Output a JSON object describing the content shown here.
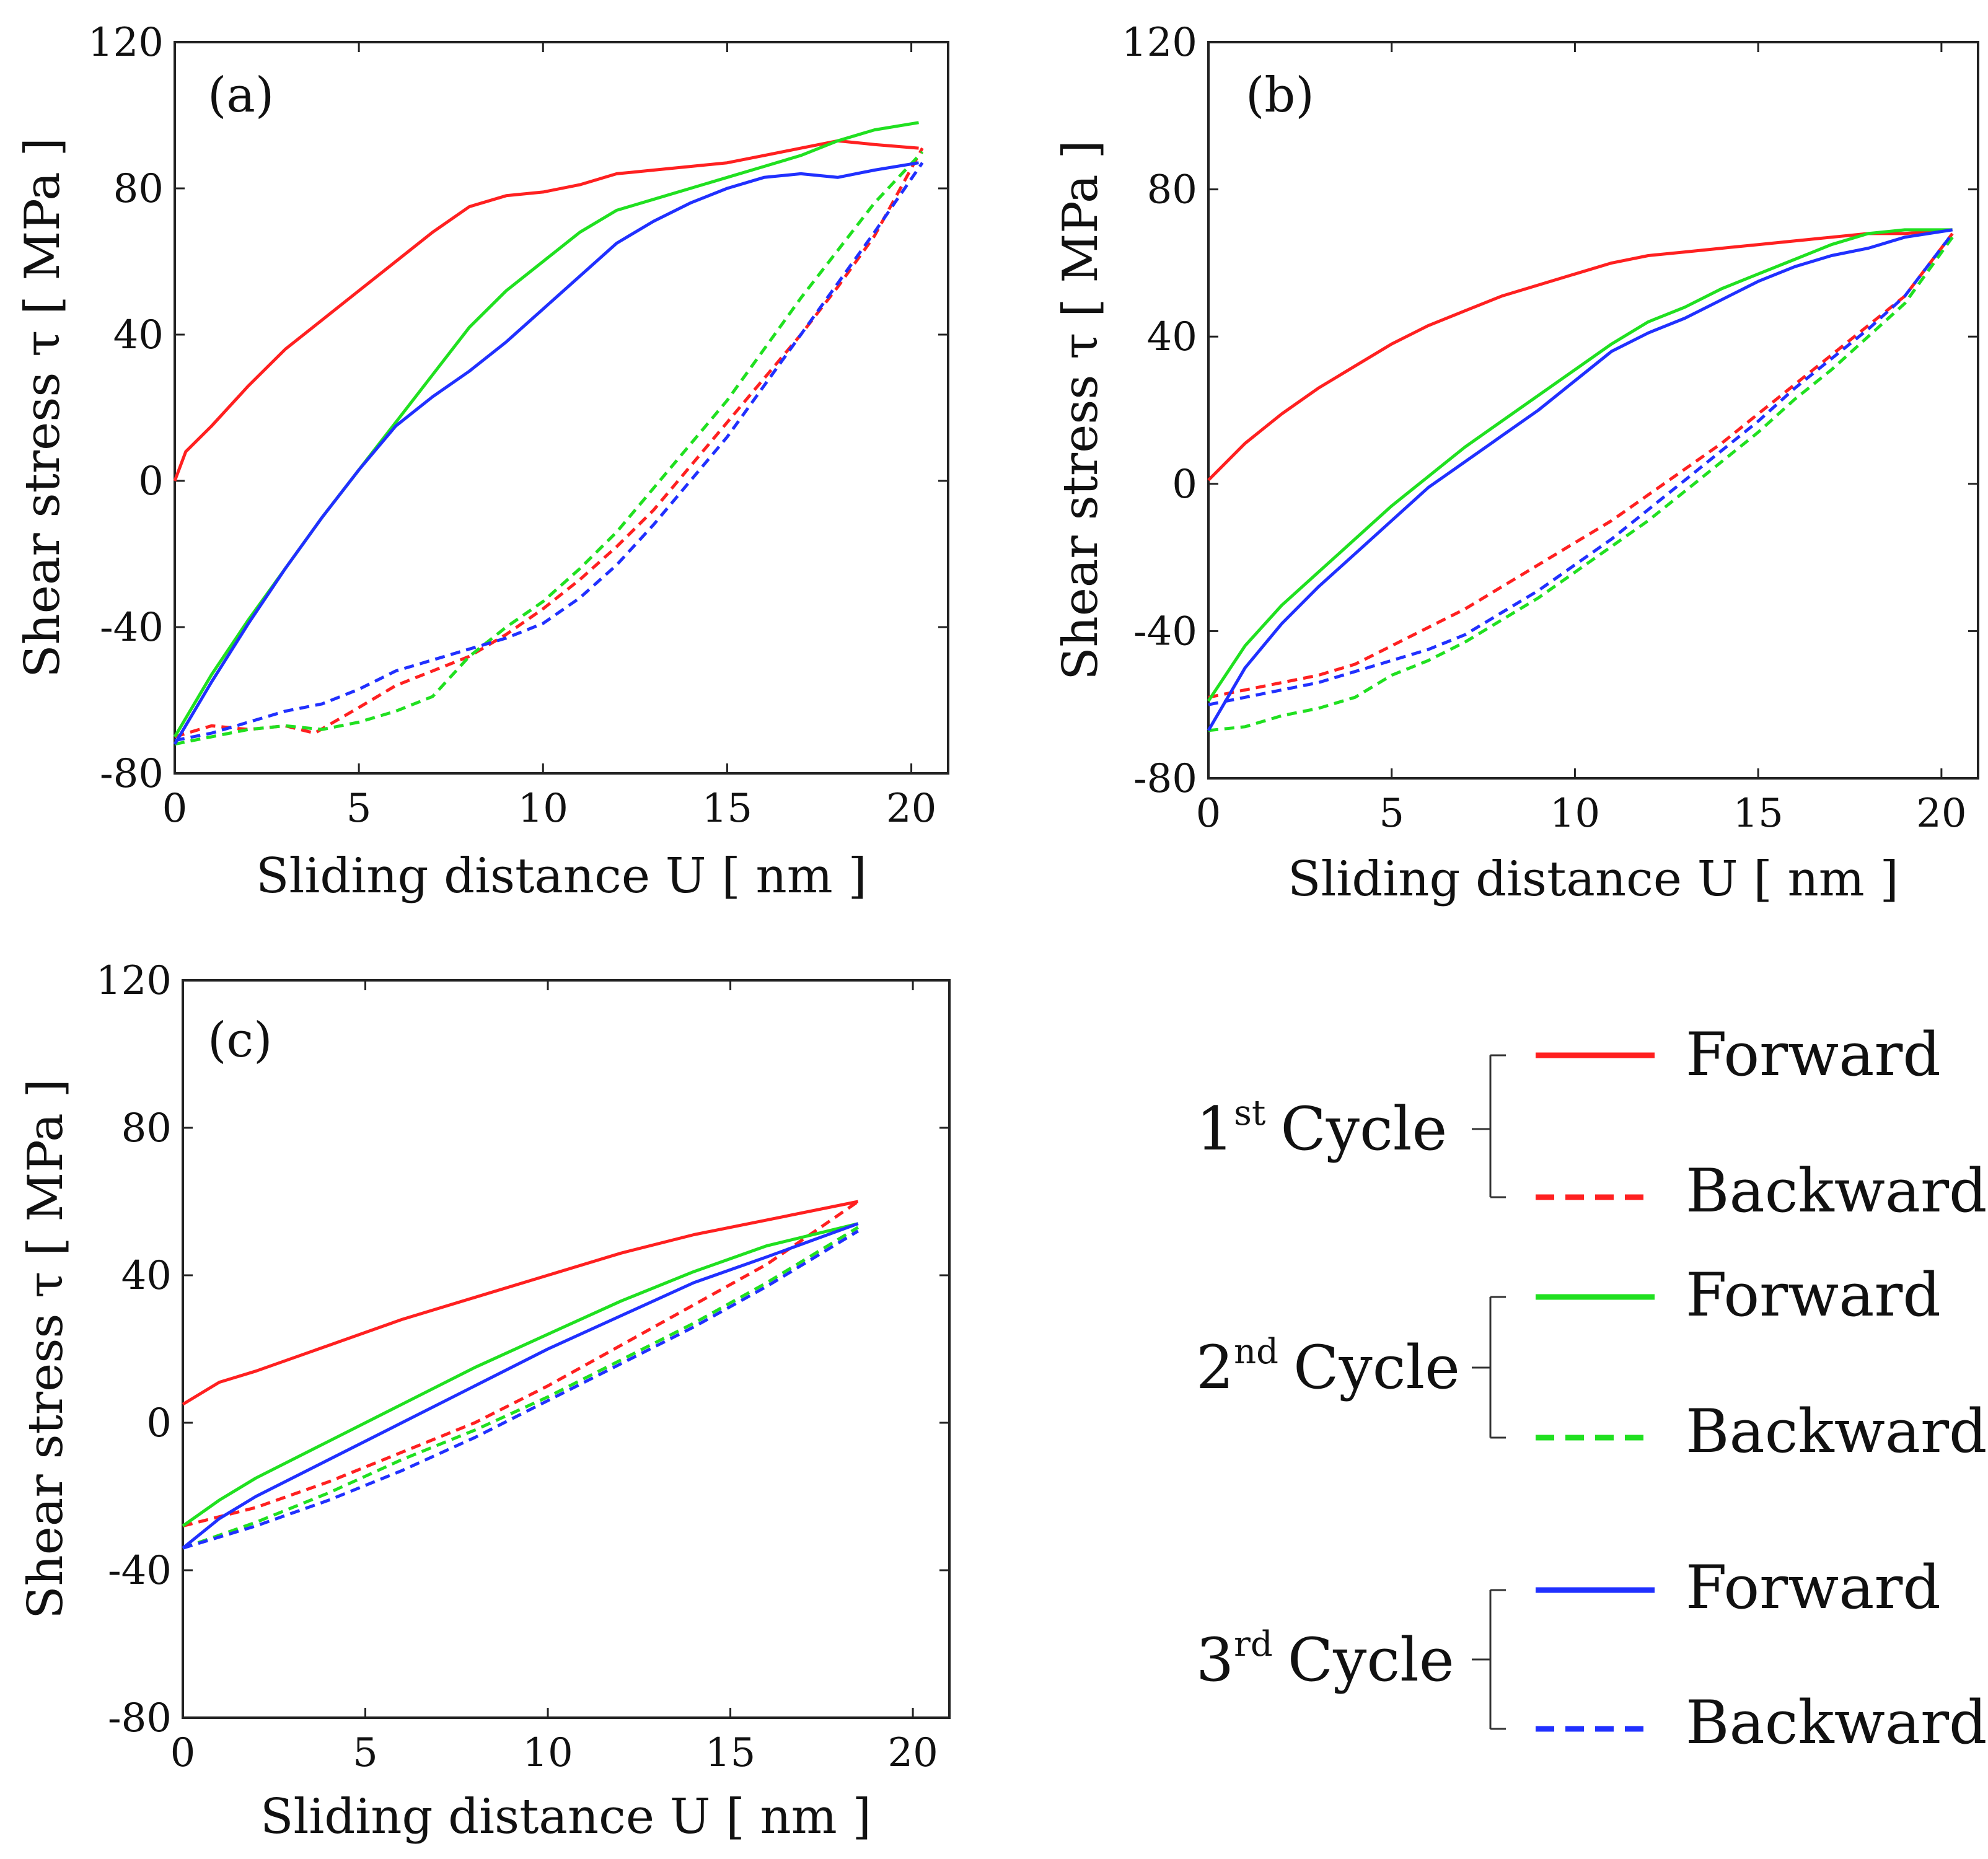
{
  "chart_data": [
    {
      "type": "line",
      "panel": "(a)",
      "xlabel": "Sliding distance U [ nm ]",
      "ylabel": "Shear stress τ [ MPa ]",
      "xlim": [
        0,
        21
      ],
      "ylim": [
        -80,
        120
      ],
      "xticks": [
        "0",
        "5",
        "10",
        "15",
        "20"
      ],
      "yticks": [
        "-80",
        "-40",
        "0",
        "40",
        "80",
        "120"
      ],
      "series": [
        {
          "name": "1st Cycle Forward",
          "color": "#ff2020",
          "dashed": false,
          "x": [
            0,
            0.3,
            1,
            2,
            3,
            4,
            5,
            6,
            7,
            8,
            9,
            10,
            11,
            12,
            13,
            14,
            15,
            16,
            17,
            18,
            19,
            20.2
          ],
          "y": [
            0,
            8,
            15,
            26,
            36,
            44,
            52,
            60,
            68,
            75,
            78,
            79,
            81,
            84,
            85,
            86,
            87,
            89,
            91,
            93,
            92,
            91
          ]
        },
        {
          "name": "1st Cycle Backward",
          "color": "#ff2020",
          "dashed": true,
          "x": [
            0,
            1,
            2,
            3,
            3.8,
            5,
            6,
            7,
            8,
            9,
            10,
            11,
            12,
            13,
            14,
            15,
            16,
            17,
            18,
            19,
            20.3
          ],
          "y": [
            -70,
            -67,
            -68,
            -67,
            -69,
            -62,
            -56,
            -52,
            -48,
            -42,
            -35,
            -27,
            -18,
            -8,
            4,
            16,
            28,
            40,
            53,
            67,
            91
          ]
        },
        {
          "name": "2nd Cycle Forward",
          "color": "#20e020",
          "dashed": false,
          "x": [
            0,
            1,
            2,
            3,
            4,
            5,
            6,
            7,
            8,
            9,
            10,
            11,
            12,
            13,
            14,
            15,
            16,
            17,
            18,
            19,
            20.2
          ],
          "y": [
            -70,
            -53,
            -38,
            -24,
            -10,
            3,
            16,
            29,
            42,
            52,
            60,
            68,
            74,
            77,
            80,
            83,
            86,
            89,
            93,
            96,
            98
          ]
        },
        {
          "name": "2nd Cycle Backward",
          "color": "#20e020",
          "dashed": true,
          "x": [
            0,
            1,
            2,
            3,
            4,
            5,
            6,
            7,
            8,
            9,
            10,
            11,
            12,
            13,
            14,
            15,
            16,
            17,
            18,
            19,
            20.3
          ],
          "y": [
            -72,
            -70,
            -68,
            -67,
            -68,
            -66,
            -63,
            -59,
            -48,
            -40,
            -33,
            -24,
            -14,
            -2,
            10,
            22,
            36,
            50,
            63,
            76,
            90
          ]
        },
        {
          "name": "3rd Cycle Forward",
          "color": "#2030ff",
          "dashed": false,
          "x": [
            0,
            1,
            2,
            3,
            4,
            5,
            6,
            7,
            8,
            9,
            10,
            11,
            12,
            13,
            14,
            15,
            16,
            17,
            18,
            19,
            20.2
          ],
          "y": [
            -72,
            -55,
            -39,
            -24,
            -10,
            3,
            15,
            23,
            30,
            38,
            47,
            56,
            65,
            71,
            76,
            80,
            83,
            84,
            83,
            85,
            87
          ]
        },
        {
          "name": "3rd Cycle Backward",
          "color": "#2030ff",
          "dashed": true,
          "x": [
            0,
            1,
            2,
            3,
            4,
            5,
            6,
            7,
            8,
            9,
            10,
            11,
            12,
            13,
            14,
            15,
            16,
            17,
            18,
            19,
            20.3
          ],
          "y": [
            -71,
            -69,
            -66,
            -63,
            -61,
            -57,
            -52,
            -49,
            -46,
            -43,
            -39,
            -32,
            -23,
            -12,
            0,
            12,
            26,
            40,
            54,
            68,
            87
          ]
        }
      ]
    },
    {
      "type": "line",
      "panel": "(b)",
      "xlabel": "Sliding distance U [ nm ]",
      "ylabel": "Shear stress τ [ MPa ]",
      "xlim": [
        0,
        21
      ],
      "ylim": [
        -80,
        120
      ],
      "xticks": [
        "0",
        "5",
        "10",
        "15",
        "20"
      ],
      "yticks": [
        "-80",
        "-40",
        "0",
        "40",
        "80",
        "120"
      ],
      "series": [
        {
          "name": "1st Cycle Forward",
          "color": "#ff2020",
          "dashed": false,
          "x": [
            0,
            1,
            2,
            3,
            4,
            5,
            6,
            7,
            8,
            9,
            10,
            11,
            12,
            13,
            14,
            15,
            16,
            17,
            18,
            19,
            20.3
          ],
          "y": [
            1,
            11,
            19,
            26,
            32,
            38,
            43,
            47,
            51,
            54,
            57,
            60,
            62,
            63,
            64,
            65,
            66,
            67,
            68,
            68,
            69
          ]
        },
        {
          "name": "1st Cycle Backward",
          "color": "#ff2020",
          "dashed": true,
          "x": [
            0,
            1,
            2,
            3,
            4,
            5,
            6,
            7,
            8,
            9,
            10,
            11,
            12,
            13,
            14,
            15,
            16,
            17,
            18,
            19,
            20.3
          ],
          "y": [
            -58,
            -56,
            -54,
            -52,
            -49,
            -44,
            -39,
            -34,
            -28,
            -22,
            -16,
            -10,
            -3,
            4,
            11,
            19,
            27,
            35,
            43,
            51,
            68
          ]
        },
        {
          "name": "2nd Cycle Forward",
          "color": "#20e020",
          "dashed": false,
          "x": [
            0,
            1,
            2,
            3,
            4,
            5,
            6,
            7,
            8,
            9,
            10,
            11,
            12,
            13,
            14,
            15,
            16,
            17,
            18,
            19,
            20.3
          ],
          "y": [
            -59,
            -44,
            -33,
            -24,
            -15,
            -6,
            2,
            10,
            17,
            24,
            31,
            38,
            44,
            48,
            53,
            57,
            61,
            65,
            68,
            69,
            69
          ]
        },
        {
          "name": "2nd Cycle Backward",
          "color": "#20e020",
          "dashed": true,
          "x": [
            0,
            1,
            2,
            3,
            4,
            5,
            6,
            7,
            8,
            9,
            10,
            11,
            12,
            13,
            14,
            15,
            16,
            17,
            18,
            19,
            20.3
          ],
          "y": [
            -67,
            -66,
            -63,
            -61,
            -58,
            -52,
            -48,
            -43,
            -37,
            -31,
            -24,
            -17,
            -10,
            -2,
            6,
            14,
            23,
            31,
            40,
            49,
            67
          ]
        },
        {
          "name": "3rd Cycle Forward",
          "color": "#2030ff",
          "dashed": false,
          "x": [
            0,
            1,
            2,
            3,
            4,
            5,
            6,
            7,
            8,
            9,
            10,
            11,
            12,
            13,
            14,
            15,
            16,
            17,
            18,
            19,
            20.3
          ],
          "y": [
            -67,
            -50,
            -38,
            -28,
            -19,
            -10,
            -1,
            6,
            13,
            20,
            28,
            36,
            41,
            45,
            50,
            55,
            59,
            62,
            64,
            67,
            69
          ]
        },
        {
          "name": "3rd Cycle Backward",
          "color": "#2030ff",
          "dashed": true,
          "x": [
            0,
            1,
            2,
            3,
            4,
            5,
            6,
            7,
            8,
            9,
            10,
            11,
            12,
            13,
            14,
            15,
            16,
            17,
            18,
            19,
            20.3
          ],
          "y": [
            -60,
            -58,
            -56,
            -54,
            -51,
            -48,
            -45,
            -41,
            -35,
            -29,
            -22,
            -15,
            -7,
            1,
            9,
            17,
            26,
            34,
            42,
            51,
            68
          ]
        }
      ]
    },
    {
      "type": "line",
      "panel": "(c)",
      "xlabel": "Sliding distance U [ nm ]",
      "ylabel": "Shear stress τ [ MPa ]",
      "xlim": [
        0,
        21
      ],
      "ylim": [
        -80,
        120
      ],
      "xticks": [
        "0",
        "5",
        "10",
        "15",
        "20"
      ],
      "yticks": [
        "-80",
        "-40",
        "0",
        "40",
        "80",
        "120"
      ],
      "series": [
        {
          "name": "1st Cycle Forward",
          "color": "#ff2020",
          "dashed": false,
          "x": [
            0,
            0.5,
            1,
            2,
            4,
            6,
            8,
            10,
            12,
            14,
            16,
            18.5
          ],
          "y": [
            5,
            8,
            11,
            14,
            21,
            28,
            34,
            40,
            46,
            51,
            55,
            60
          ]
        },
        {
          "name": "1st Cycle Backward",
          "color": "#ff2020",
          "dashed": true,
          "x": [
            0,
            2,
            4,
            6,
            8,
            10,
            12,
            14,
            16,
            18.5
          ],
          "y": [
            -28,
            -23,
            -16,
            -8,
            0,
            10,
            21,
            32,
            43,
            60
          ]
        },
        {
          "name": "2nd Cycle Forward",
          "color": "#20e020",
          "dashed": false,
          "x": [
            0,
            1,
            2,
            4,
            6,
            8,
            10,
            12,
            14,
            16,
            18.5
          ],
          "y": [
            -28,
            -21,
            -15,
            -5,
            5,
            15,
            24,
            33,
            41,
            48,
            54
          ]
        },
        {
          "name": "2nd Cycle Backward",
          "color": "#20e020",
          "dashed": true,
          "x": [
            0,
            2,
            4,
            6,
            8,
            10,
            12,
            14,
            16,
            18.5
          ],
          "y": [
            -34,
            -27,
            -19,
            -10,
            -2,
            7,
            17,
            27,
            38,
            53
          ]
        },
        {
          "name": "3rd Cycle Forward",
          "color": "#2030ff",
          "dashed": false,
          "x": [
            0,
            1,
            2,
            4,
            6,
            8,
            10,
            12,
            14,
            16,
            18.5
          ],
          "y": [
            -34,
            -26,
            -20,
            -10,
            0,
            10,
            20,
            29,
            38,
            45,
            54
          ]
        },
        {
          "name": "3rd Cycle Backward",
          "color": "#2030ff",
          "dashed": true,
          "x": [
            0,
            2,
            4,
            6,
            8,
            10,
            12,
            14,
            16,
            18.5
          ],
          "y": [
            -34,
            -28,
            -21,
            -13,
            -4,
            6,
            16,
            26,
            37,
            52
          ]
        }
      ]
    }
  ],
  "legend": {
    "groups": [
      {
        "number": "1",
        "suffix": "st",
        "word": "Cycle",
        "color": "#ff2020",
        "forward": "Forward",
        "backward": "Backward"
      },
      {
        "number": "2",
        "suffix": "nd",
        "word": "Cycle",
        "color": "#20e020",
        "forward": "Forward",
        "backward": "Backward"
      },
      {
        "number": "3",
        "suffix": "rd",
        "word": "Cycle",
        "color": "#2030ff",
        "forward": "Forward",
        "backward": "Backward"
      }
    ]
  }
}
